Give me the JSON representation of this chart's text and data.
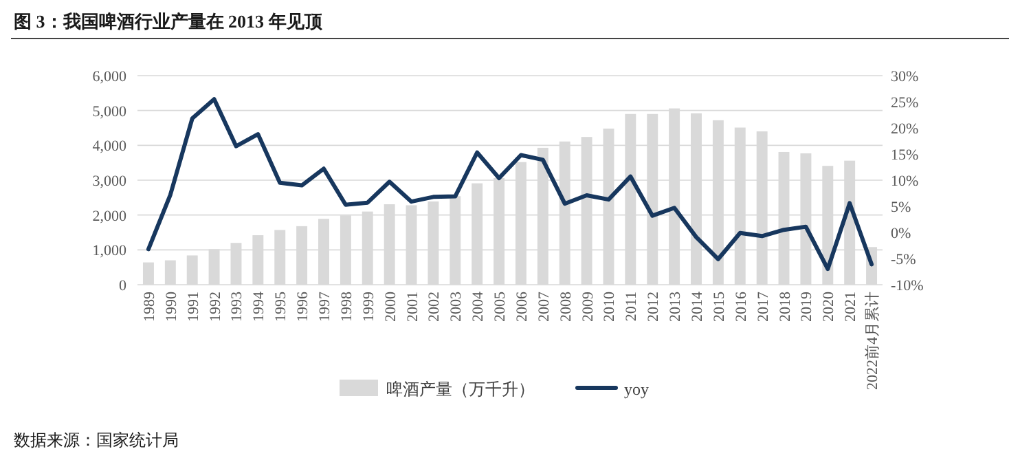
{
  "chart_data": {
    "type": "bar",
    "title": "图 3：我国啤酒行业产量在 2013 年见顶",
    "categories": [
      "1989",
      "1990",
      "1991",
      "1992",
      "1993",
      "1994",
      "1995",
      "1996",
      "1997",
      "1998",
      "1999",
      "2000",
      "2001",
      "2002",
      "2003",
      "2004",
      "2005",
      "2006",
      "2007",
      "2008",
      "2009",
      "2010",
      "2011",
      "2012",
      "2013",
      "2014",
      "2015",
      "2016",
      "2017",
      "2018",
      "2019",
      "2020",
      "2021",
      "2022前4月累计"
    ],
    "series": [
      {
        "name": "啤酒产量（万千升）",
        "color": "#d9d9d9",
        "values": [
          640,
          700,
          840,
          1020,
          1200,
          1420,
          1570,
          1680,
          1890,
          1990,
          2100,
          2310,
          2280,
          2390,
          2540,
          2910,
          3060,
          3520,
          3930,
          4110,
          4240,
          4480,
          4900,
          4900,
          5060,
          4920,
          4720,
          4510,
          4400,
          3810,
          3770,
          3410,
          3560,
          1080
        ]
      },
      {
        "name": "yoy",
        "type": "line",
        "axis": "y2",
        "color": "#17375e",
        "values": [
          -3.2,
          7.2,
          21.8,
          25.5,
          16.5,
          18.8,
          9.5,
          9.0,
          12.2,
          5.3,
          5.7,
          9.7,
          5.9,
          6.8,
          6.9,
          15.3,
          10.4,
          14.8,
          13.9,
          5.5,
          7.1,
          6.3,
          10.7,
          3.2,
          4.7,
          -0.9,
          -5.1,
          -0.1,
          -0.7,
          0.5,
          1.1,
          -7.0,
          5.6,
          -6.1
        ]
      }
    ],
    "ylim": [
      0,
      6000
    ],
    "yticks": [
      {
        "value": 0,
        "label": "0"
      },
      {
        "value": 1000,
        "label": "1,000"
      },
      {
        "value": 2000,
        "label": "2,000"
      },
      {
        "value": 3000,
        "label": "3,000"
      },
      {
        "value": 4000,
        "label": "4,000"
      },
      {
        "value": 5000,
        "label": "5,000"
      },
      {
        "value": 6000,
        "label": "6,000"
      }
    ],
    "y2lim": [
      -10,
      30
    ],
    "y2ticks": [
      {
        "value": -10,
        "label": "-10%"
      },
      {
        "value": -5,
        "label": "-5%"
      },
      {
        "value": 0,
        "label": "0%"
      },
      {
        "value": 5,
        "label": "5%"
      },
      {
        "value": 10,
        "label": "10%"
      },
      {
        "value": 15,
        "label": "15%"
      },
      {
        "value": 20,
        "label": "20%"
      },
      {
        "value": 25,
        "label": "25%"
      },
      {
        "value": 30,
        "label": "30%"
      }
    ],
    "grid": "y",
    "legend": "bottom",
    "line_style": "solid",
    "marker": "none",
    "annotations": [
      "数据来源：国家统计局"
    ]
  }
}
